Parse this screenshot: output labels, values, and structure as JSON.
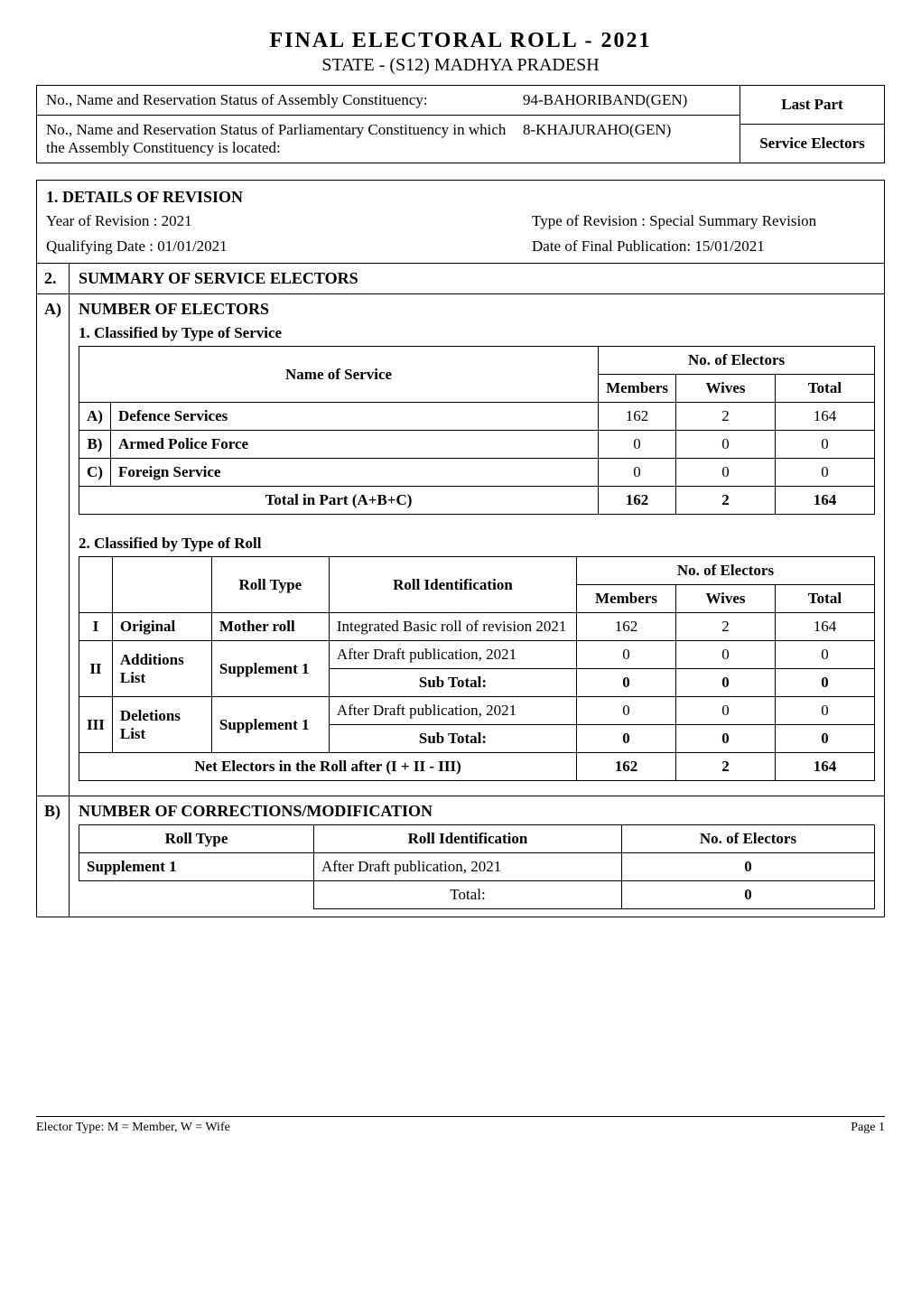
{
  "title_main": "FINAL ELECTORAL ROLL  -  2021",
  "title_sub": "STATE - (S12) MADHYA PRADESH",
  "header": {
    "assembly_label": "No., Name and Reservation Status of Assembly Constituency:",
    "assembly_value": "94-BAHORIBAND(GEN)",
    "parliamentary_label": "No., Name and Reservation Status of Parliamentary Constituency in which the Assembly Constituency is located:",
    "parliamentary_value": "8-KHAJURAHO(GEN)",
    "right_top": "Last Part",
    "right_bottom": "Service Electors"
  },
  "revision": {
    "heading": "1. DETAILS OF REVISION",
    "year_label": "Year of Revision :",
    "year_value": "2021",
    "type_label": "Type of Revision :",
    "type_value": "Special Summary Revision",
    "qdate_label": "Qualifying Date :",
    "qdate_value": "01/01/2021",
    "pubdate_label": "Date of  Final Publication:",
    "pubdate_value": "15/01/2021"
  },
  "section2_num": "2.",
  "section2_heading": "SUMMARY OF SERVICE ELECTORS",
  "sectionA_letter": "A)",
  "sectionA_heading": "NUMBER OF ELECTORS",
  "classified_service": {
    "heading": "1. Classified by Type of Service",
    "col_name": "Name of Service",
    "col_electors": "No. of Electors",
    "col_members": "Members",
    "col_wives": "Wives",
    "col_total": "Total",
    "rows": [
      {
        "letter": "A)",
        "name": "Defence Services",
        "members": "162",
        "wives": "2",
        "total": "164"
      },
      {
        "letter": "B)",
        "name": "Armed Police Force",
        "members": "0",
        "wives": "0",
        "total": "0"
      },
      {
        "letter": "C)",
        "name": "Foreign Service",
        "members": "0",
        "wives": "0",
        "total": "0"
      }
    ],
    "total_label": "Total in Part (A+B+C)",
    "total_members": "162",
    "total_wives": "2",
    "total_total": "164"
  },
  "classified_roll": {
    "heading": "2. Classified by Type of Roll",
    "col_rolltype": "Roll Type",
    "col_rollid": "Roll Identification",
    "col_electors": "No. of Electors",
    "col_members": "Members",
    "col_wives": "Wives",
    "col_total": "Total",
    "rows": [
      {
        "idx": "I",
        "cat": "Original",
        "rolltype": "Mother roll",
        "rollid": "Integrated Basic roll of revision 2021",
        "members": "162",
        "wives": "2",
        "total": "164"
      },
      {
        "idx": "II",
        "cat": "Additions List",
        "rolltype": "Supplement 1",
        "rollid": "After Draft publication, 2021",
        "members": "0",
        "wives": "0",
        "total": "0"
      },
      {
        "idx": "",
        "cat": "",
        "rolltype": "",
        "rollid": "Sub Total:",
        "members": "0",
        "wives": "0",
        "total": "0",
        "bold": true,
        "merged": true
      },
      {
        "idx": "III",
        "cat": "Deletions List",
        "rolltype": "Supplement 1",
        "rollid": "After Draft publication, 2021",
        "members": "0",
        "wives": "0",
        "total": "0"
      },
      {
        "idx": "",
        "cat": "",
        "rolltype": "",
        "rollid": "Sub Total:",
        "members": "0",
        "wives": "0",
        "total": "0",
        "bold": true,
        "merged": true
      }
    ],
    "net_label": "Net Electors in the Roll after (I + II - III)",
    "net_members": "162",
    "net_wives": "2",
    "net_total": "164"
  },
  "sectionB_letter": "B)",
  "sectionB_heading": "NUMBER OF CORRECTIONS/MODIFICATION",
  "corrections": {
    "col_rolltype": "Roll Type",
    "col_rollid": "Roll Identification",
    "col_electors": "No. of Electors",
    "rows": [
      {
        "rolltype": "Supplement 1",
        "rollid": "After Draft publication, 2021",
        "electors": "0"
      }
    ],
    "total_label": "Total:",
    "total_value": "0"
  },
  "footer": {
    "left": "Elector Type: M = Member, W = Wife",
    "right": "Page 1"
  }
}
